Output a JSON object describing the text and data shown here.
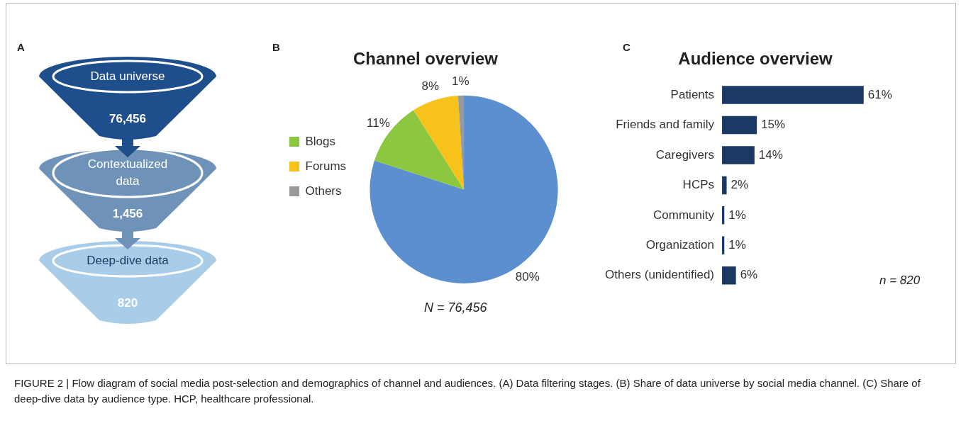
{
  "chart_data": [
    {
      "type": "other",
      "categories": [
        "Data universe",
        "Contextualized data",
        "Deep-dive data"
      ],
      "values": [
        76456,
        1456,
        820
      ],
      "value_labels": [
        "76,456",
        "1,456",
        "820"
      ],
      "colors": [
        "#1f4e8c",
        "#6f93b8",
        "#a9cce8"
      ],
      "annotations": [
        "A"
      ]
    },
    {
      "type": "pie",
      "title": "Channel overview",
      "categories": [
        null,
        "Blogs",
        "Forums",
        "Others"
      ],
      "values": [
        80,
        11,
        8,
        1
      ],
      "colors": [
        "#5b8fd0",
        "#8dc63f",
        "#f7c31b",
        "#9a9a9a"
      ],
      "value_labels": [
        "80%",
        "11%",
        "8%",
        "1%"
      ],
      "legend": "left",
      "annotations": [
        "B",
        "N = 76,456"
      ]
    },
    {
      "type": "bar",
      "orientation": "horizontal",
      "title": "Audience overview",
      "categories": [
        "Patients",
        "Friends and family",
        "Caregivers",
        "HCPs",
        "Community",
        "Organization",
        "Others (unidentified)"
      ],
      "values": [
        61,
        15,
        14,
        2,
        1,
        1,
        6
      ],
      "color": "#1b3a63",
      "value_labels": [
        "61%",
        "15%",
        "14%",
        "2%",
        "1%",
        "1%",
        "6%"
      ],
      "annotations": [
        "C",
        "n = 820",
        "FIGURE 2 | Flow diagram of social media post-selection and demographics of channel and audiences. (A) Data filtering stages. (B) Share of data universe by social media channel. (C) Share of deep-dive data by audience type. HCP, healthcare professional."
      ]
    }
  ]
}
